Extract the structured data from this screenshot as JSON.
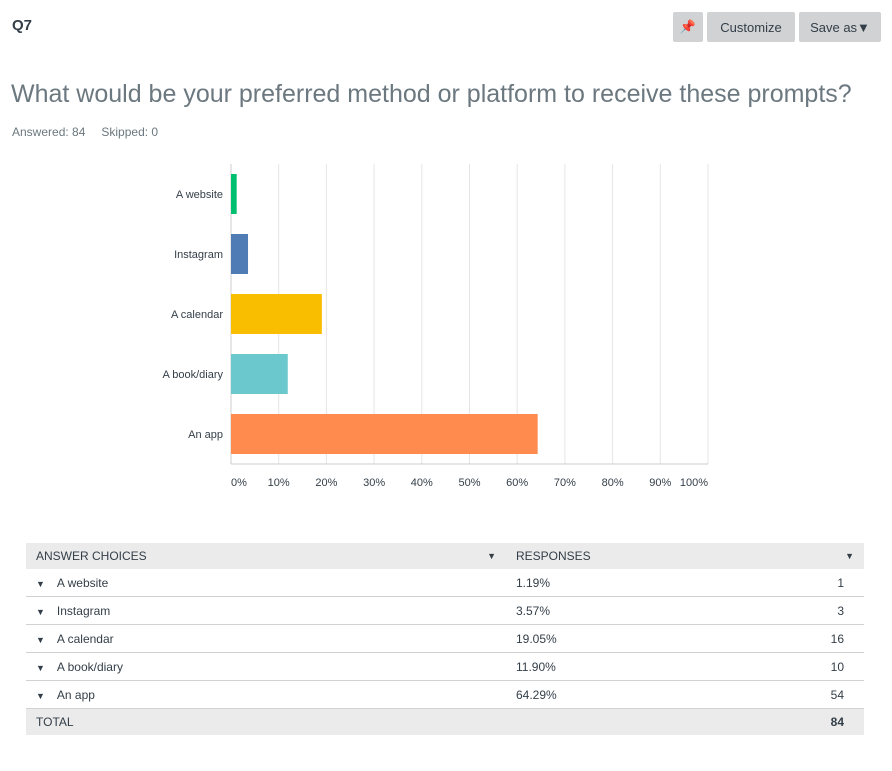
{
  "header": {
    "question_number": "Q7",
    "pin_icon": "pin-icon",
    "customize_label": "Customize",
    "save_as_label": "Save as▼"
  },
  "question": {
    "title": "What would be your preferred method or platform to receive these prompts?",
    "answered": "Answered: 84",
    "skipped": "Skipped: 0"
  },
  "chart_data": {
    "type": "bar",
    "orientation": "horizontal",
    "categories": [
      "A website",
      "Instagram",
      "A calendar",
      "A book/diary",
      "An app"
    ],
    "values": [
      1.19,
      3.57,
      19.05,
      11.9,
      64.29
    ],
    "colors": [
      "#00bf6f",
      "#507cb6",
      "#f9be00",
      "#6bc8cd",
      "#ff8b4f"
    ],
    "xlim": [
      0,
      100
    ],
    "xticks": [
      "0%",
      "10%",
      "20%",
      "30%",
      "40%",
      "50%",
      "60%",
      "70%",
      "80%",
      "90%",
      "100%"
    ],
    "grid": true
  },
  "table": {
    "headers": [
      "ANSWER CHOICES",
      "RESPONSES"
    ],
    "rows": [
      {
        "label": "A website",
        "percent": "1.19%",
        "count": "1"
      },
      {
        "label": "Instagram",
        "percent": "3.57%",
        "count": "3"
      },
      {
        "label": "A calendar",
        "percent": "19.05%",
        "count": "16"
      },
      {
        "label": "A book/diary",
        "percent": "11.90%",
        "count": "10"
      },
      {
        "label": "An app",
        "percent": "64.29%",
        "count": "54"
      }
    ],
    "total_label": "TOTAL",
    "total_count": "84"
  }
}
